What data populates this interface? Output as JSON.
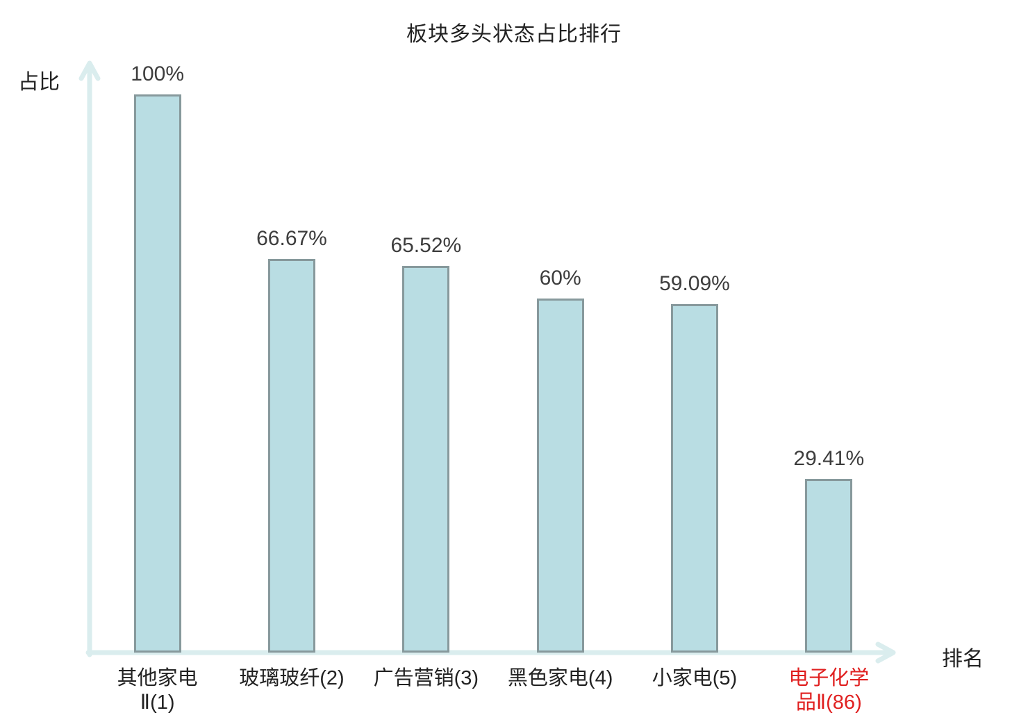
{
  "colors": {
    "background": "#ffffff",
    "text": "#222222",
    "value_text": "#3d3d3d",
    "bar_fill": "#b9dde3",
    "bar_border": "#87999c",
    "axis_line": "#daedee",
    "highlight_text": "#e02020"
  },
  "chart_data": {
    "type": "bar",
    "title": "板块多头状态占比排行",
    "xlabel": "排名",
    "ylabel": "占比",
    "ylim": [
      0,
      100
    ],
    "unit": "%",
    "grid": false,
    "legend_position": "none",
    "categories": [
      "其他家电Ⅱ(1)",
      "玻璃玻纤(2)",
      "广告营销(3)",
      "黑色家电(4)",
      "小家电(5)",
      "电子化学品Ⅱ(86)"
    ],
    "category_display": [
      "其他家电\nⅡ(1)",
      "玻璃玻纤(2)",
      "广告营销(3)",
      "黑色家电(4)",
      "小家电(5)",
      "电子化学\n品Ⅱ(86)"
    ],
    "values": [
      100,
      66.67,
      65.52,
      60,
      59.09,
      29.41
    ],
    "value_labels": [
      "100%",
      "66.67%",
      "65.52%",
      "60%",
      "59.09%",
      "29.41%"
    ],
    "highlight_index": 5
  }
}
